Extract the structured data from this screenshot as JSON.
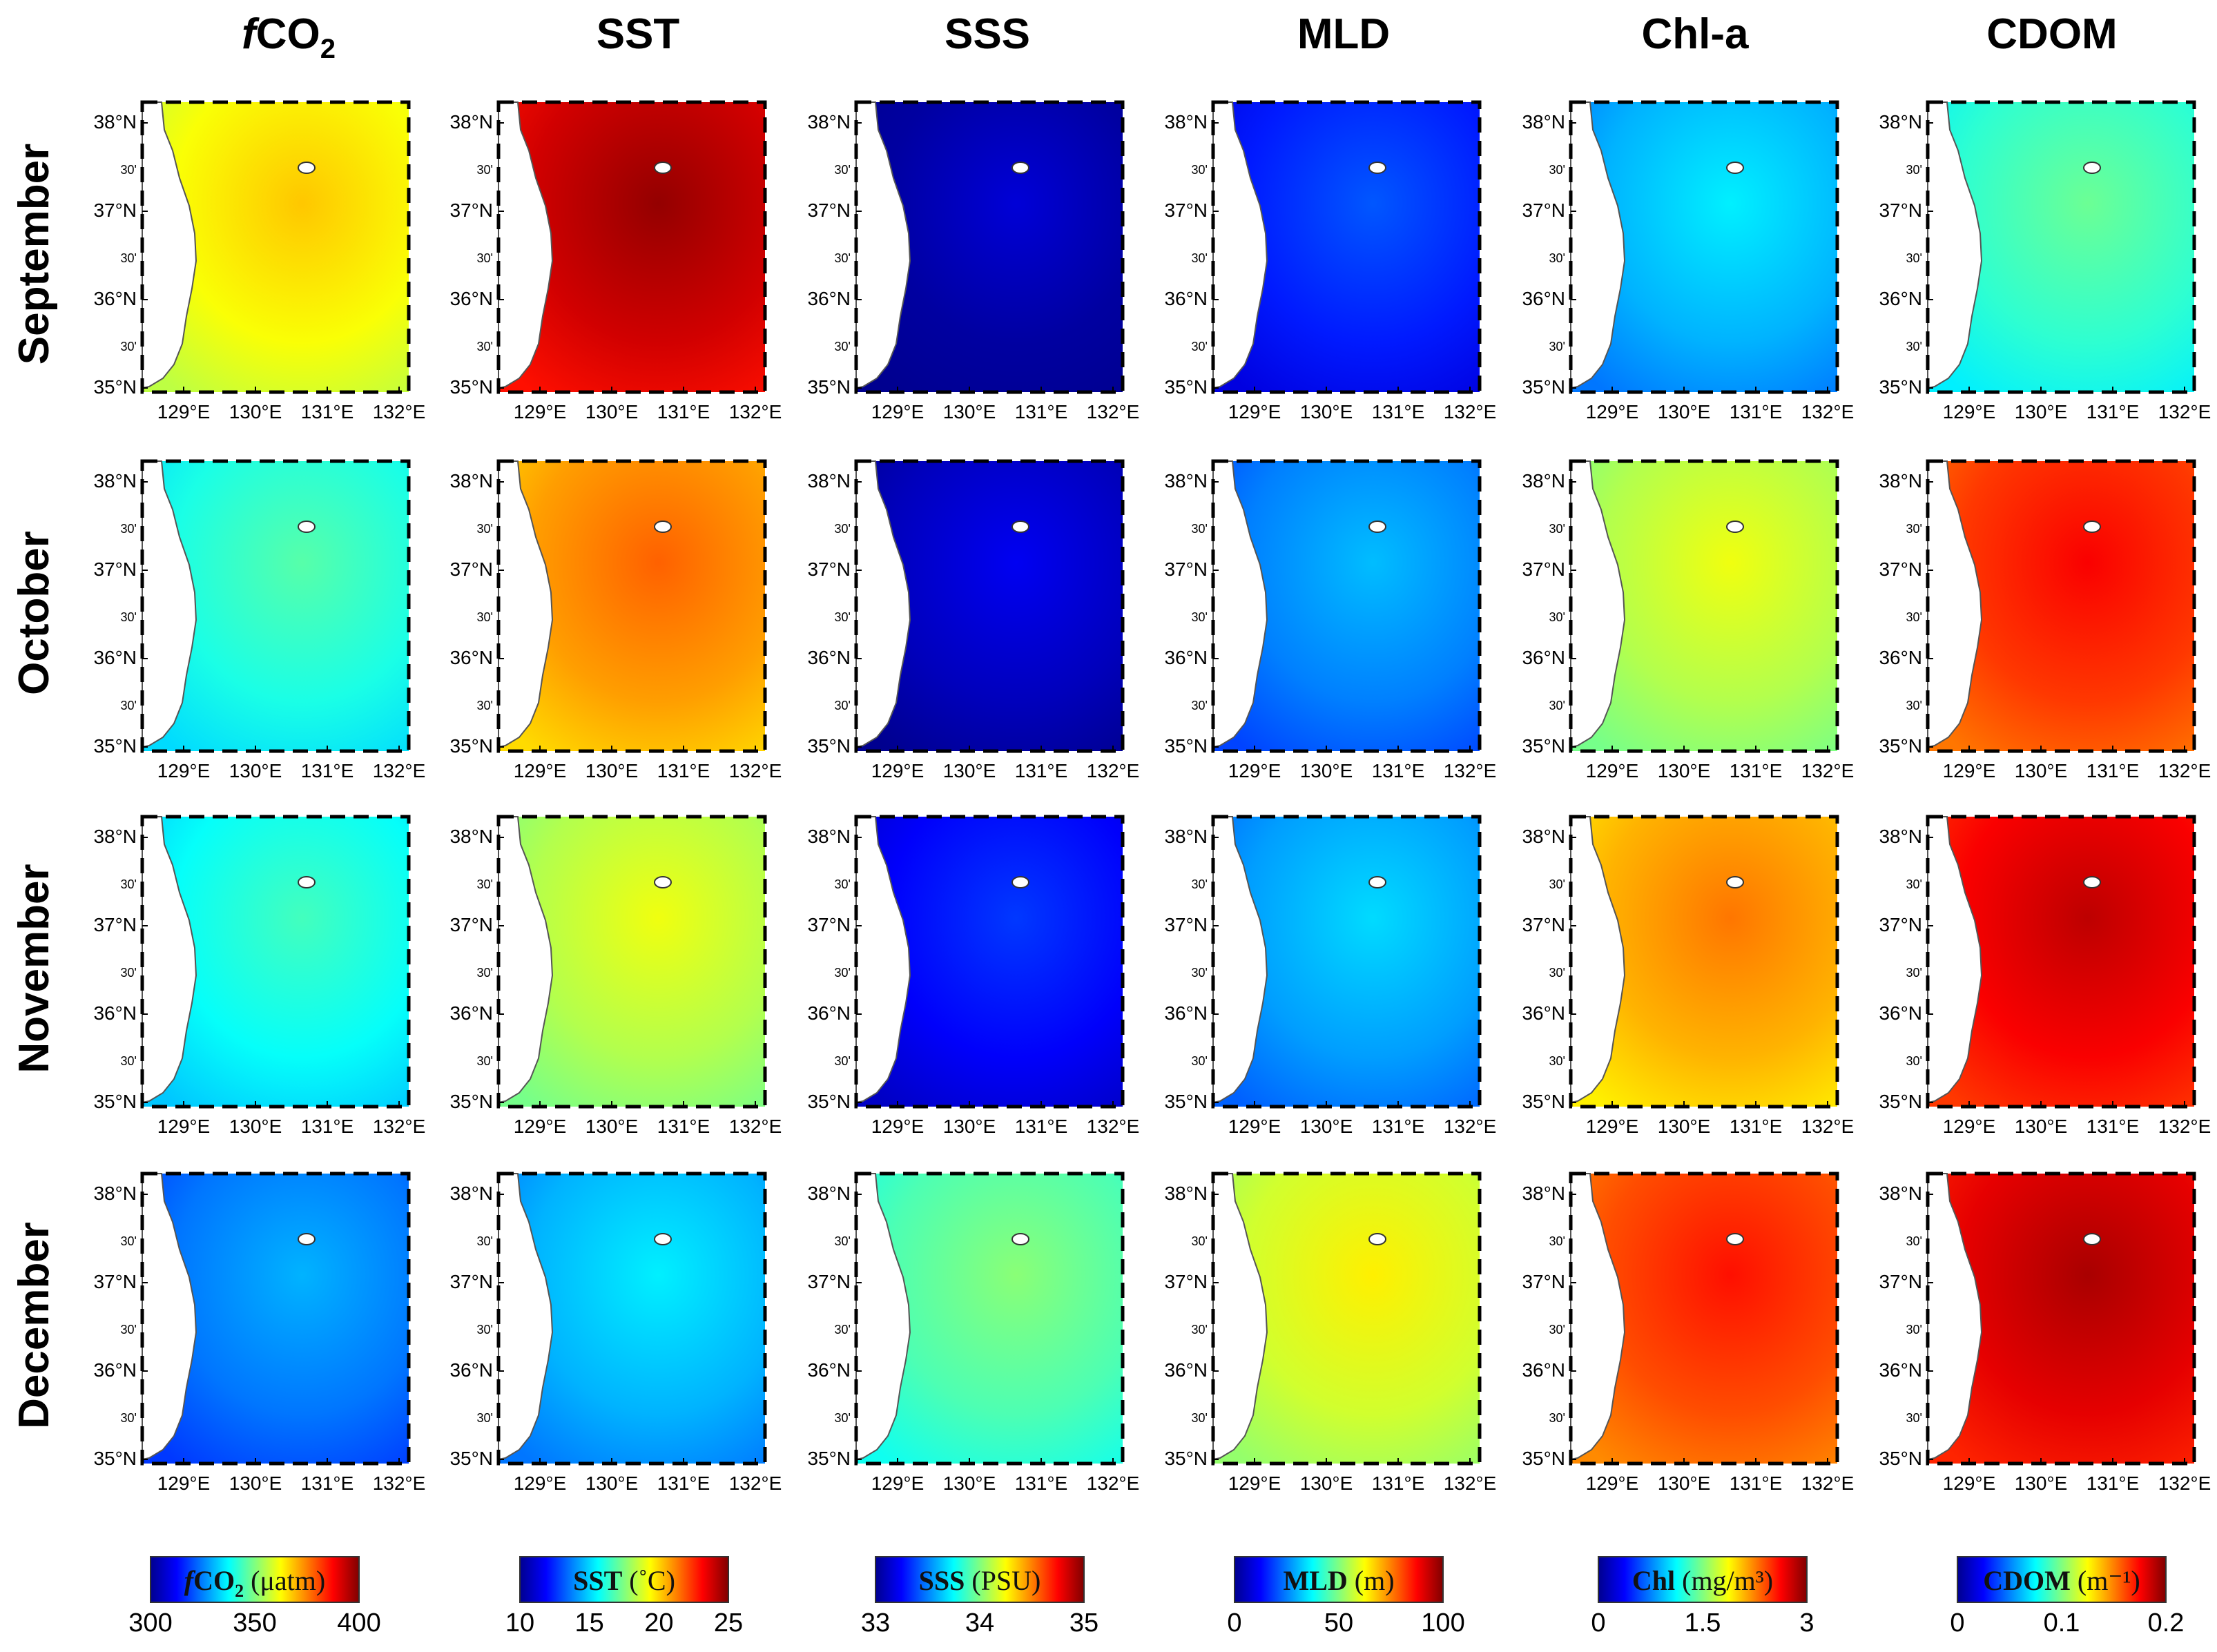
{
  "figure": {
    "columns": [
      {
        "key": "fco2",
        "title_pre": "f",
        "title_main": "CO",
        "title_sub": "2",
        "colorbar": {
          "label_pre": "f",
          "label_main": "CO",
          "label_sub": "2",
          "label_unit": " (μatm)",
          "ticks": [
            "300",
            "350",
            "400"
          ]
        }
      },
      {
        "key": "sst",
        "title_pre": "",
        "title_main": "SST",
        "title_sub": "",
        "colorbar": {
          "label_pre": "",
          "label_main": "SST",
          "label_sub": "",
          "label_unit": " (˚C)",
          "ticks": [
            "10",
            "15",
            "20",
            "25"
          ]
        }
      },
      {
        "key": "sss",
        "title_pre": "",
        "title_main": "SSS",
        "title_sub": "",
        "colorbar": {
          "label_pre": "",
          "label_main": "SSS",
          "label_sub": "",
          "label_unit": " (PSU)",
          "ticks": [
            "33",
            "34",
            "35"
          ]
        }
      },
      {
        "key": "mld",
        "title_pre": "",
        "title_main": "MLD",
        "title_sub": "",
        "colorbar": {
          "label_pre": "",
          "label_main": "MLD",
          "label_sub": "",
          "label_unit": " (m)",
          "ticks": [
            "0",
            "50",
            "100"
          ]
        }
      },
      {
        "key": "chla",
        "title_pre": "",
        "title_main": "Chl-a",
        "title_sub": "",
        "colorbar": {
          "label_pre": "",
          "label_main": "Chl",
          "label_sub": "",
          "label_unit": " (mg/m³)",
          "ticks": [
            "0",
            "1.5",
            "3"
          ]
        }
      },
      {
        "key": "cdom",
        "title_pre": "",
        "title_main": "CDOM",
        "title_sub": "",
        "colorbar": {
          "label_pre": "",
          "label_main": "CDOM",
          "label_sub": "",
          "label_unit": " (m⁻¹)",
          "ticks": [
            "0",
            "0.1",
            "0.2"
          ]
        }
      }
    ],
    "rows": [
      "September",
      "October",
      "November",
      "December"
    ],
    "lat_labels": [
      "38°N",
      "37°N",
      "36°N",
      "35°N"
    ],
    "lat_minute_label": "30'",
    "lon_labels": [
      "129°E",
      "130°E",
      "131°E",
      "132°E"
    ],
    "field_levels": [
      [
        0.62,
        0.92,
        0.02,
        0.15,
        0.3,
        0.42
      ],
      [
        0.4,
        0.72,
        0.05,
        0.25,
        0.55,
        0.82
      ],
      [
        0.38,
        0.55,
        0.12,
        0.28,
        0.7,
        0.88
      ],
      [
        0.24,
        0.3,
        0.45,
        0.58,
        0.8,
        0.9
      ]
    ],
    "colors": {
      "jet": [
        "#00008f",
        "#0000ff",
        "#0080ff",
        "#00ffff",
        "#80ff80",
        "#ffff00",
        "#ff8000",
        "#ff0000",
        "#800000"
      ],
      "land": "#ffffff",
      "coast": "#555555",
      "island": "#ffffff"
    }
  }
}
